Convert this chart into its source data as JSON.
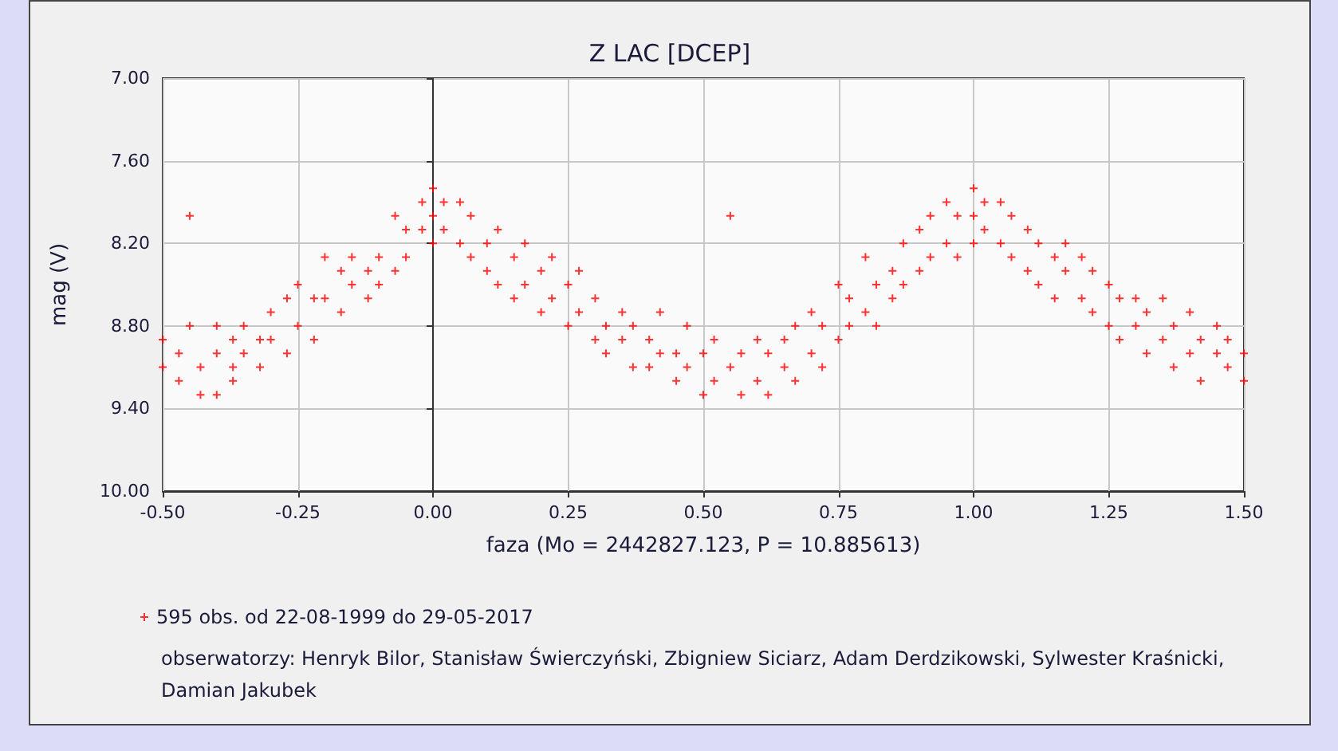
{
  "chart_data": {
    "type": "scatter",
    "title": "Z LAC [DCEP]",
    "xlabel": "faza (Mo = 2442827.123, P = 10.885613)",
    "ylabel": "mag (V)",
    "xlim": [
      -0.5,
      1.5
    ],
    "xticks": [
      {
        "value": -0.5,
        "label": "-0.50"
      },
      {
        "value": -0.25,
        "label": "-0.25"
      },
      {
        "value": 0,
        "label": "0.00"
      },
      {
        "value": 0.25,
        "label": "0.25"
      },
      {
        "value": 0.5,
        "label": "0.50"
      },
      {
        "value": 0.75,
        "label": "0.75"
      },
      {
        "value": 1,
        "label": "1.00"
      },
      {
        "value": 1.25,
        "label": "1.25"
      },
      {
        "value": 1.5,
        "label": "1.50"
      }
    ],
    "ylim": [
      10,
      7
    ],
    "yticks": [
      {
        "value": 7,
        "label": "7.00"
      },
      {
        "value": 7.6,
        "label": "7.60"
      },
      {
        "value": 8.2,
        "label": "8.20"
      },
      {
        "value": 8.8,
        "label": "8.80"
      },
      {
        "value": 9.4,
        "label": "9.40"
      },
      {
        "value": 10,
        "label": "10.00"
      }
    ],
    "grid": true,
    "legend": "bottom",
    "marker": "cross",
    "series": [
      {
        "name": "595 obs. od 22-08-1999 do 29-05-2017",
        "color": "#ff0000",
        "x": [
          -0.5,
          -0.5,
          -0.47,
          -0.47,
          -0.45,
          -0.45,
          -0.43,
          -0.43,
          -0.4,
          -0.4,
          -0.4,
          -0.37,
          -0.37,
          -0.37,
          -0.35,
          -0.35,
          -0.32,
          -0.32,
          -0.3,
          -0.3,
          -0.27,
          -0.27,
          -0.25,
          -0.25,
          -0.22,
          -0.22,
          -0.2,
          -0.2,
          -0.17,
          -0.17,
          -0.15,
          -0.15,
          -0.12,
          -0.12,
          -0.1,
          -0.1,
          -0.07,
          -0.07,
          -0.05,
          -0.05,
          -0.02,
          -0.02,
          0,
          0,
          0,
          0.02,
          0.02,
          0.05,
          0.05,
          0.07,
          0.07,
          0.1,
          0.1,
          0.12,
          0.12,
          0.15,
          0.15,
          0.17,
          0.17,
          0.2,
          0.2,
          0.22,
          0.22,
          0.25,
          0.25,
          0.27,
          0.27,
          0.3,
          0.3,
          0.32,
          0.32,
          0.35,
          0.35,
          0.37,
          0.37,
          0.4,
          0.4,
          0.42,
          0.42,
          0.45,
          0.45,
          0.47,
          0.47,
          0.5,
          0.5,
          0.52,
          0.52,
          0.55,
          0.55,
          0.57,
          0.57,
          0.6,
          0.6,
          0.62,
          0.62,
          0.65,
          0.65,
          0.67,
          0.67,
          0.7,
          0.7,
          0.72,
          0.72,
          0.75,
          0.75,
          0.77,
          0.77,
          0.8,
          0.8,
          0.82,
          0.82,
          0.85,
          0.85,
          0.87,
          0.87,
          0.9,
          0.9,
          0.92,
          0.92,
          0.95,
          0.95,
          0.97,
          0.97,
          1,
          1,
          1,
          1.02,
          1.02,
          1.05,
          1.05,
          1.07,
          1.07,
          1.1,
          1.1,
          1.12,
          1.12,
          1.15,
          1.15,
          1.17,
          1.17,
          1.2,
          1.2,
          1.22,
          1.22,
          1.25,
          1.25,
          1.27,
          1.27,
          1.3,
          1.3,
          1.32,
          1.32,
          1.35,
          1.35,
          1.37,
          1.37,
          1.4,
          1.4,
          1.42,
          1.42,
          1.45,
          1.45,
          1.47,
          1.47,
          1.5,
          1.5
        ],
        "values": [
          8.9,
          9.1,
          9.0,
          9.2,
          8.0,
          8.8,
          9.1,
          9.3,
          8.8,
          9.0,
          9.3,
          8.9,
          9.1,
          9.2,
          8.8,
          9.0,
          8.9,
          9.1,
          8.7,
          8.9,
          8.6,
          9.0,
          8.5,
          8.8,
          8.6,
          8.9,
          8.3,
          8.6,
          8.4,
          8.7,
          8.3,
          8.5,
          8.4,
          8.6,
          8.3,
          8.5,
          8.0,
          8.4,
          8.1,
          8.3,
          7.9,
          8.1,
          7.8,
          8.0,
          8.2,
          7.9,
          8.1,
          7.9,
          8.2,
          8.0,
          8.3,
          8.2,
          8.4,
          8.1,
          8.5,
          8.3,
          8.6,
          8.2,
          8.5,
          8.4,
          8.7,
          8.3,
          8.6,
          8.5,
          8.8,
          8.4,
          8.7,
          8.6,
          8.9,
          8.8,
          9.0,
          8.7,
          8.9,
          8.8,
          9.1,
          8.9,
          9.1,
          8.7,
          9.0,
          9.0,
          9.2,
          8.8,
          9.1,
          9.0,
          9.3,
          8.9,
          9.2,
          8.0,
          9.1,
          9.0,
          9.3,
          8.9,
          9.2,
          9.0,
          9.3,
          8.9,
          9.1,
          8.8,
          9.2,
          8.7,
          9.0,
          8.8,
          9.1,
          8.5,
          8.9,
          8.6,
          8.8,
          8.3,
          8.7,
          8.5,
          8.8,
          8.4,
          8.6,
          8.2,
          8.5,
          8.1,
          8.4,
          8.0,
          8.3,
          7.9,
          8.2,
          8.0,
          8.3,
          7.8,
          8.0,
          8.2,
          7.9,
          8.1,
          7.9,
          8.2,
          8.0,
          8.3,
          8.1,
          8.4,
          8.2,
          8.5,
          8.3,
          8.6,
          8.2,
          8.4,
          8.3,
          8.6,
          8.4,
          8.7,
          8.5,
          8.8,
          8.6,
          8.9,
          8.6,
          8.8,
          8.7,
          9.0,
          8.6,
          8.9,
          8.8,
          9.1,
          8.7,
          9.0,
          8.9,
          9.2,
          8.8,
          9.0,
          8.9,
          9.1,
          9.0,
          9.2
        ]
      }
    ],
    "annotations": [
      "obserwatorzy: Henryk Bilor, Stanisław Świerczyński, Zbigniew Siciarz, Adam Derdzikowski, Sylwester Kraśnicki, Damian Jakubek"
    ]
  }
}
